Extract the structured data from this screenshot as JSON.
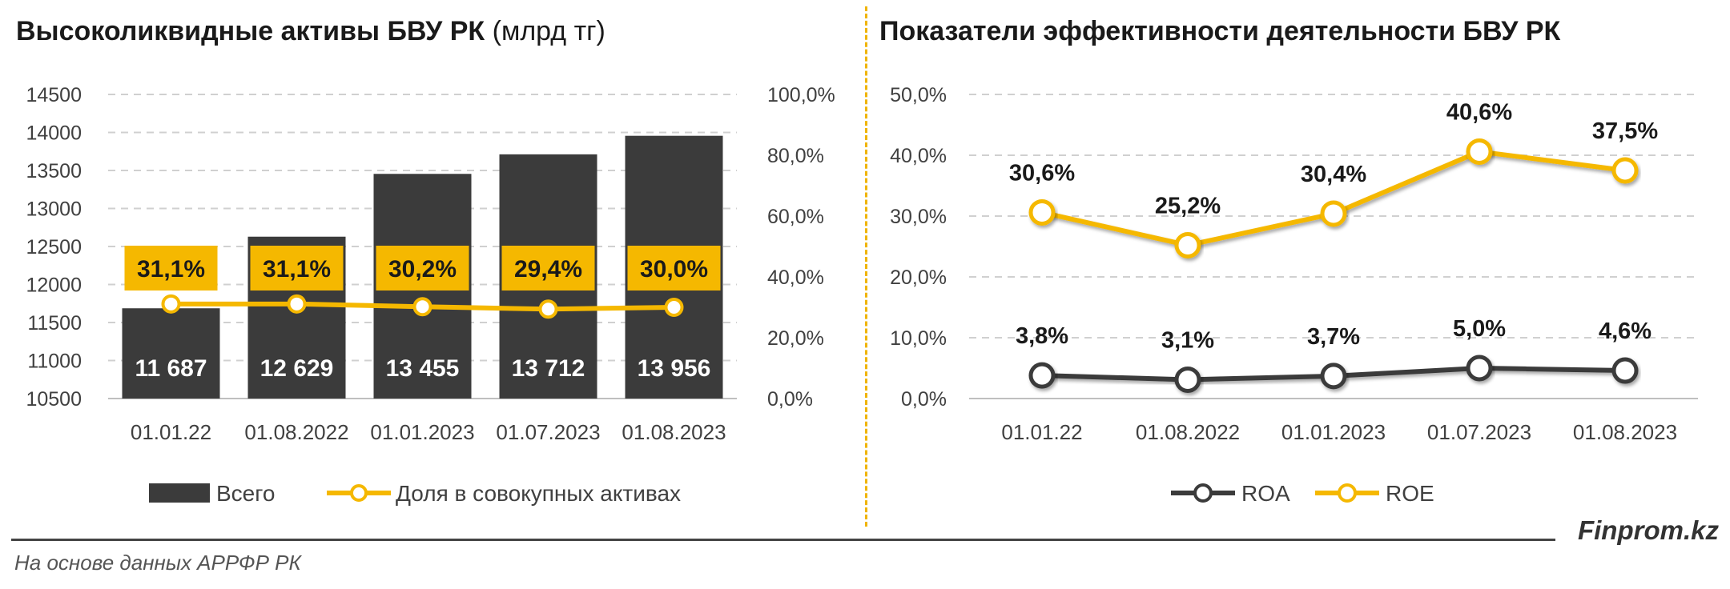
{
  "colors": {
    "bar": "#3b3b3b",
    "accent": "#f5b800",
    "dark_line": "#3b3b3b",
    "grid": "#d0d0d0"
  },
  "left_title": {
    "main": "Высоколиквидные активы БВУ РК",
    "unit": "(млрд тг)"
  },
  "right_title": "Показатели эффективности деятельности БВУ РК",
  "footer": {
    "brand": "Finprom.kz",
    "source": "На основе данных АРРФР РК"
  },
  "chart_data": [
    {
      "type": "bar",
      "title": "Высоколиквидные активы БВУ РК (млрд тг)",
      "categories": [
        "01.01.22",
        "01.08.2022",
        "01.01.2023",
        "01.07.2023",
        "01.08.2023"
      ],
      "ylim": [
        10500,
        14500
      ],
      "yticks": [
        "10500",
        "11000",
        "11500",
        "12000",
        "12500",
        "13000",
        "13500",
        "14000",
        "14500"
      ],
      "y2lim": [
        0,
        100
      ],
      "y2ticks": [
        "0,0%",
        "20,0%",
        "40,0%",
        "60,0%",
        "80,0%",
        "100,0%"
      ],
      "grid": true,
      "legend_position": "bottom",
      "series": [
        {
          "name": "Всего",
          "kind": "bar",
          "axis": "left",
          "values": [
            11687,
            12629,
            13455,
            13712,
            13956
          ],
          "labels": [
            "11 687",
            "12 629",
            "13 455",
            "13 712",
            "13 956"
          ]
        },
        {
          "name": "Доля в совокупных активах",
          "kind": "line",
          "axis": "right",
          "values": [
            31.1,
            31.1,
            30.2,
            29.4,
            30.0
          ],
          "labels": [
            "31,1%",
            "31,1%",
            "30,2%",
            "29,4%",
            "30,0%"
          ]
        }
      ]
    },
    {
      "type": "line",
      "title": "Показатели эффективности деятельности БВУ РК",
      "categories": [
        "01.01.22",
        "01.08.2022",
        "01.01.2023",
        "01.07.2023",
        "01.08.2023"
      ],
      "ylim": [
        0,
        50
      ],
      "yticks": [
        "0,0%",
        "10,0%",
        "20,0%",
        "30,0%",
        "40,0%",
        "50,0%"
      ],
      "grid": true,
      "legend_position": "bottom",
      "series": [
        {
          "name": "ROA",
          "values": [
            3.8,
            3.1,
            3.7,
            5.0,
            4.6
          ],
          "labels": [
            "3,8%",
            "3,1%",
            "3,7%",
            "5,0%",
            "4,6%"
          ]
        },
        {
          "name": "ROE",
          "values": [
            30.6,
            25.2,
            30.4,
            40.6,
            37.5
          ],
          "labels": [
            "30,6%",
            "25,2%",
            "30,4%",
            "40,6%",
            "37,5%"
          ]
        }
      ]
    }
  ]
}
